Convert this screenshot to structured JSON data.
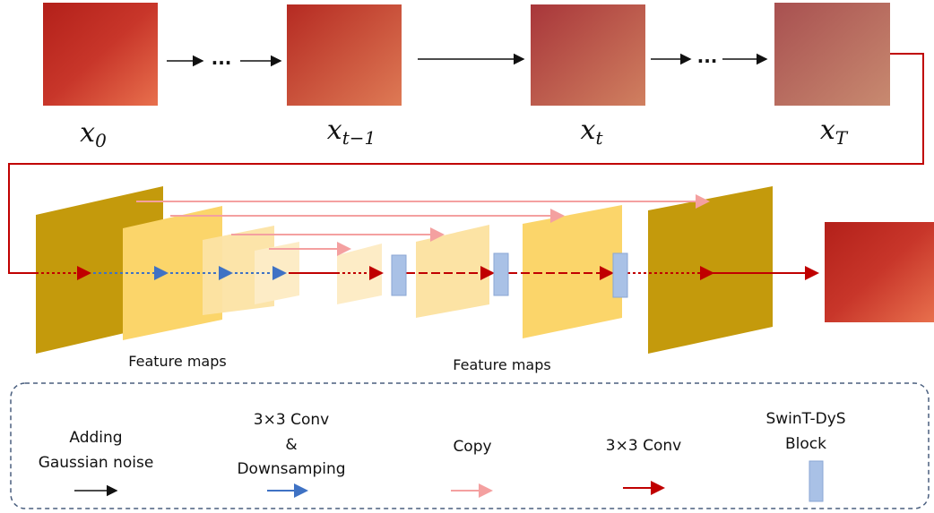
{
  "diffusion": {
    "steps": [
      {
        "base": "x",
        "sub": "0"
      },
      {
        "base": "x",
        "sub": "t−1"
      },
      {
        "base": "x",
        "sub": "t"
      },
      {
        "base": "x",
        "sub": "T"
      }
    ],
    "ellipses": [
      "...",
      "..."
    ]
  },
  "network": {
    "labels": [
      "Feature maps",
      "Feature maps"
    ]
  },
  "legend": {
    "items": [
      {
        "lines": [
          "Adding",
          "Gaussian noise"
        ]
      },
      {
        "lines": [
          "3×3 Conv",
          "&",
          "Downsamping"
        ]
      },
      {
        "lines": [
          "Copy"
        ]
      },
      {
        "lines": [
          "3×3 Conv"
        ]
      },
      {
        "lines": [
          "SwinT-DyS",
          "Block"
        ]
      }
    ]
  }
}
